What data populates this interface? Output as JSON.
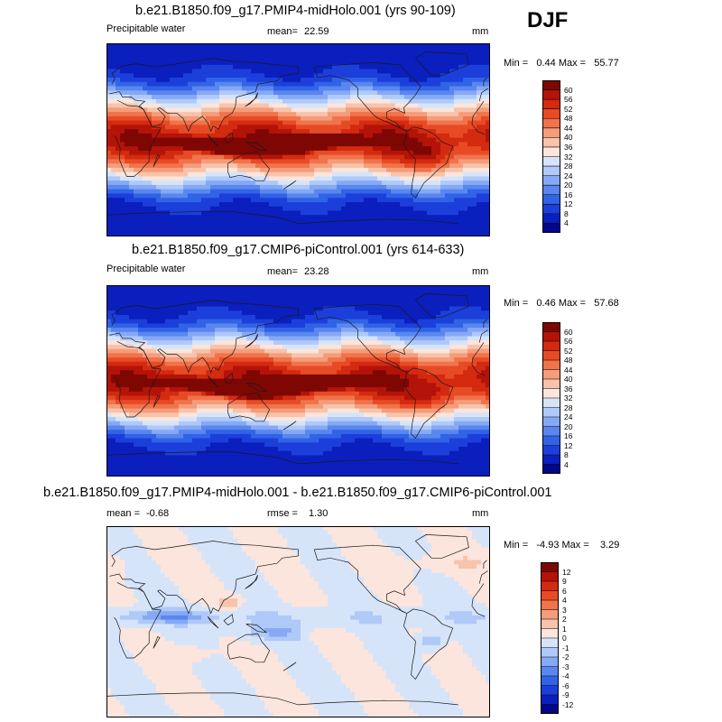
{
  "season": "DJF",
  "units": "mm",
  "palette_abs": [
    "#05068a",
    "#0a1fbd",
    "#1c3fdb",
    "#3163e6",
    "#5a86ef",
    "#85a9f5",
    "#afc9f8",
    "#d6e4fa",
    "#fbe5dc",
    "#f7c3ab",
    "#f59c7a",
    "#f0734b",
    "#e74b25",
    "#d32a10",
    "#b31308",
    "#7e0704"
  ],
  "palette_diff": [
    "#05068a",
    "#0a1fbd",
    "#1c3fdb",
    "#3163e6",
    "#5a86ef",
    "#85a9f5",
    "#afc9f8",
    "#d6e4fa",
    "#fbe5dc",
    "#f7c3ab",
    "#f59c7a",
    "#f0734b",
    "#e74b25",
    "#d32a10",
    "#b31308",
    "#7e0704"
  ],
  "chart_data": [
    {
      "type": "heatmap",
      "title": "b.e21.B1850.f09_g17.PMIP4-midHolo.001 (yrs 90-109)",
      "variable": "Precipitable water",
      "mean_label": "mean=",
      "mean": "22.59",
      "units": "mm",
      "minmax_label": "Min =   0.44 Max =   55.77",
      "min": 0.44,
      "max": 55.77,
      "colorbar_ticks": [
        "60",
        "56",
        "52",
        "48",
        "44",
        "40",
        "36",
        "32",
        "28",
        "24",
        "20",
        "16",
        "12",
        "8",
        "4"
      ],
      "colorbar_levels": 16,
      "itcz_peak": 52
    },
    {
      "type": "heatmap",
      "title": "b.e21.B1850.f09_g17.CMIP6-piControl.001 (yrs 614-633)",
      "variable": "Precipitable water",
      "mean_label": "mean=",
      "mean": "23.28",
      "units": "mm",
      "minmax_label": "Min =   0.46 Max =   57.68",
      "min": 0.46,
      "max": 57.68,
      "colorbar_ticks": [
        "60",
        "56",
        "52",
        "48",
        "44",
        "40",
        "36",
        "32",
        "28",
        "24",
        "20",
        "16",
        "12",
        "8",
        "4"
      ],
      "colorbar_levels": 16,
      "itcz_peak": 54
    },
    {
      "type": "heatmap",
      "title": "b.e21.B1850.f09_g17.PMIP4-midHolo.001 - b.e21.B1850.f09_g17.CMIP6-piControl.001",
      "mean_label": "mean =",
      "mean": "-0.68",
      "rmse_label": "rmse =",
      "rmse": "1.30",
      "units": "mm",
      "minmax_label": "Min =   -4.93 Max =    3.29",
      "min": -4.93,
      "max": 3.29,
      "colorbar_ticks": [
        "12",
        "9",
        "6",
        "4",
        "3",
        "2",
        "1",
        "0",
        "-1",
        "-2",
        "-3",
        "-4",
        "-6",
        "-9",
        "-12"
      ],
      "colorbar_levels": 16
    }
  ]
}
